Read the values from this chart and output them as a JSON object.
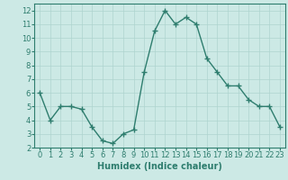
{
  "x": [
    0,
    1,
    2,
    3,
    4,
    5,
    6,
    7,
    8,
    9,
    10,
    11,
    12,
    13,
    14,
    15,
    16,
    17,
    18,
    19,
    20,
    21,
    22,
    23
  ],
  "y": [
    6,
    4,
    5,
    5,
    4.8,
    3.5,
    2.5,
    2.3,
    3,
    3.3,
    7.5,
    10.5,
    12,
    11,
    11.5,
    11,
    8.5,
    7.5,
    6.5,
    6.5,
    5.5,
    5,
    5,
    3.5
  ],
  "line_color": "#2e7d6e",
  "marker": "+",
  "marker_size": 5,
  "linewidth": 1.0,
  "bg_color": "#cce9e5",
  "grid_color": "#aed4cf",
  "xlabel": "Humidex (Indice chaleur)",
  "xlabel_fontsize": 7,
  "tick_fontsize": 6,
  "xlim": [
    -0.5,
    23.5
  ],
  "ylim": [
    2,
    12.5
  ],
  "yticks": [
    2,
    3,
    4,
    5,
    6,
    7,
    8,
    9,
    10,
    11,
    12
  ],
  "xticks": [
    0,
    1,
    2,
    3,
    4,
    5,
    6,
    7,
    8,
    9,
    10,
    11,
    12,
    13,
    14,
    15,
    16,
    17,
    18,
    19,
    20,
    21,
    22,
    23
  ]
}
